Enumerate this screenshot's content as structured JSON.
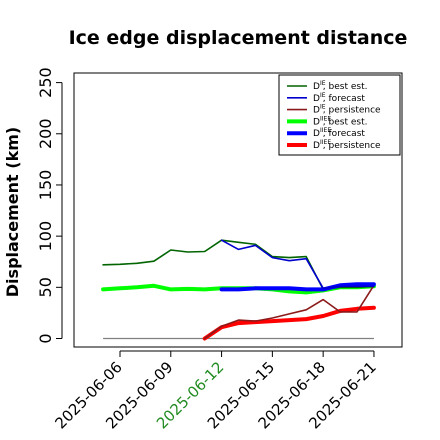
{
  "chart_data": {
    "type": "line",
    "title": "Ice edge displacement distance",
    "ylabel": "Displacement (km)",
    "xlabel": "",
    "ylim": [
      0,
      260
    ],
    "y_ticks": [
      "0",
      "50",
      "100",
      "150",
      "200",
      "250"
    ],
    "x_ticks": [
      "2025-06-06",
      "2025-06-09",
      "2025-06-12",
      "2025-06-15",
      "2025-06-18",
      "2025-06-21"
    ],
    "highlighted_x_tick": "2025-06-12",
    "highlight_color": "#228B22",
    "legend_position": "top-right",
    "grid": false,
    "series": [
      {
        "name": "D^IE, best est.",
        "legend_label": "D   , best est.",
        "legend_sup": "IE",
        "color": "#006400",
        "style": "thin",
        "x": [
          "2025-06-05",
          "2025-06-06",
          "2025-06-07",
          "2025-06-08",
          "2025-06-09",
          "2025-06-10",
          "2025-06-11",
          "2025-06-12",
          "2025-06-13",
          "2025-06-14",
          "2025-06-15",
          "2025-06-16",
          "2025-06-17",
          "2025-06-18",
          "2025-06-19",
          "2025-06-20",
          "2025-06-21"
        ],
        "values": [
          72,
          72.5,
          73.5,
          75.5,
          86.5,
          84.5,
          85,
          96,
          94,
          92,
          80,
          79,
          80,
          48,
          50,
          50,
          51
        ]
      },
      {
        "name": "D^IE, forecast",
        "legend_label": "D   , forecast",
        "legend_sup": "IE",
        "color": "#0000cd",
        "style": "thin",
        "x": [
          "2025-06-12",
          "2025-06-13",
          "2025-06-14",
          "2025-06-15",
          "2025-06-16",
          "2025-06-17",
          "2025-06-18",
          "2025-06-19",
          "2025-06-20",
          "2025-06-21"
        ],
        "values": [
          96,
          87,
          91,
          79,
          76,
          78,
          49,
          51,
          51,
          51
        ]
      },
      {
        "name": "D^IE, persistence",
        "legend_label": "D   , persistence",
        "legend_sup": "IE",
        "color": "#8b1a1a",
        "style": "thin",
        "x": [
          "2025-06-11",
          "2025-06-12",
          "2025-06-13",
          "2025-06-14",
          "2025-06-15",
          "2025-06-16",
          "2025-06-17",
          "2025-06-18",
          "2025-06-19",
          "2025-06-20",
          "2025-06-21"
        ],
        "values": [
          0,
          12,
          18,
          17,
          20,
          24,
          28,
          38,
          26,
          26,
          52
        ]
      },
      {
        "name": "D^IIEE, best est.",
        "legend_label": "D     , best est.",
        "legend_sup": "IIEE",
        "color": "#00ff00",
        "style": "thick",
        "x": [
          "2025-06-05",
          "2025-06-06",
          "2025-06-07",
          "2025-06-08",
          "2025-06-09",
          "2025-06-10",
          "2025-06-11",
          "2025-06-12",
          "2025-06-13",
          "2025-06-14",
          "2025-06-15",
          "2025-06-16",
          "2025-06-17",
          "2025-06-18",
          "2025-06-19",
          "2025-06-20",
          "2025-06-21"
        ],
        "values": [
          48,
          49,
          50,
          51.5,
          48,
          48.5,
          48,
          49,
          49,
          49,
          48,
          46,
          45,
          47,
          50,
          50,
          51
        ]
      },
      {
        "name": "D^IIEE, forecast",
        "legend_label": "D     , forecast",
        "legend_sup": "IIEE",
        "color": "#0000ff",
        "style": "thick",
        "x": [
          "2025-06-12",
          "2025-06-13",
          "2025-06-14",
          "2025-06-15",
          "2025-06-16",
          "2025-06-17",
          "2025-06-18",
          "2025-06-19",
          "2025-06-20",
          "2025-06-21"
        ],
        "values": [
          48,
          48,
          49,
          49,
          49,
          48,
          48,
          52,
          53,
          53
        ]
      },
      {
        "name": "D^IIEE, persistence",
        "legend_label": "D     , persistence",
        "legend_sup": "IIEE",
        "color": "#ff0000",
        "style": "thick",
        "x": [
          "2025-06-11",
          "2025-06-12",
          "2025-06-13",
          "2025-06-14",
          "2025-06-15",
          "2025-06-16",
          "2025-06-17",
          "2025-06-18",
          "2025-06-19",
          "2025-06-20",
          "2025-06-21"
        ],
        "values": [
          0,
          11,
          15,
          16,
          17,
          18,
          19,
          22,
          27,
          29,
          30
        ]
      }
    ],
    "baseline": {
      "color": "#808080",
      "value": 0,
      "x": [
        "2025-06-05",
        "2025-06-21"
      ]
    }
  }
}
